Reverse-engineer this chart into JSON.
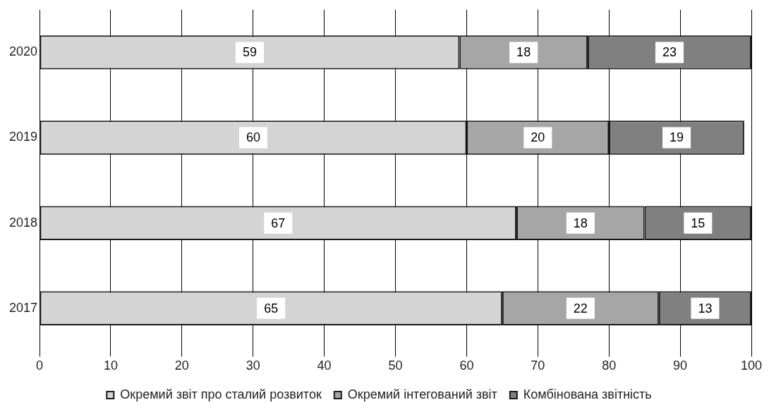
{
  "chart_data": {
    "type": "bar",
    "orientation": "horizontal",
    "stacked": true,
    "categories": [
      "2020",
      "2019",
      "2018",
      "2017"
    ],
    "series": [
      {
        "name": "Окремий звіт про сталий розвиток",
        "color": "#d4d4d4",
        "values": [
          59,
          60,
          67,
          65
        ]
      },
      {
        "name": "Окремий інтегований звіт",
        "color": "#a6a6a6",
        "values": [
          18,
          20,
          18,
          22
        ]
      },
      {
        "name": "Комбінована звітність",
        "color": "#808080",
        "values": [
          23,
          19,
          15,
          13
        ]
      }
    ],
    "xlim": [
      0,
      100
    ],
    "xticks": [
      0,
      10,
      20,
      30,
      40,
      50,
      60,
      70,
      80,
      90,
      100
    ],
    "grid": "x",
    "legend": "bottom",
    "data_labels": true
  }
}
